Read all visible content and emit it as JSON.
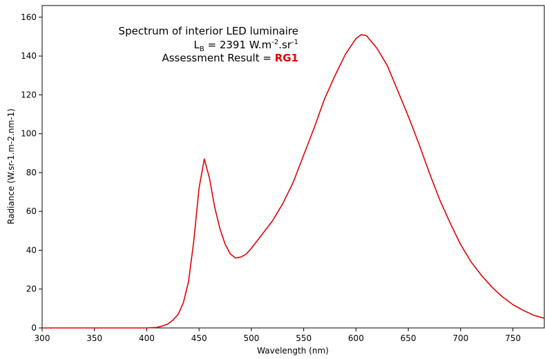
{
  "chart_data": {
    "type": "line",
    "title": "Spectrum of interior LED luminaire",
    "radiance": {
      "symbol": "L",
      "subscript": "B",
      "text": " = 2391 W.m",
      "sup1": "-2",
      "mid": ".sr",
      "sup2": "-1"
    },
    "assessment": {
      "label": "Assessment Result = ",
      "result": "RG1",
      "result_color": "#e00000"
    },
    "x_label": "Wavelength (nm)",
    "y_label": "Radiance (W.sr-1.m-2.nm-1)",
    "x": [
      300,
      350,
      400,
      410,
      415,
      420,
      425,
      430,
      435,
      440,
      445,
      450,
      455,
      460,
      465,
      470,
      475,
      480,
      485,
      490,
      495,
      500,
      510,
      520,
      530,
      540,
      550,
      560,
      570,
      580,
      590,
      600,
      605,
      610,
      620,
      630,
      640,
      650,
      660,
      670,
      680,
      690,
      700,
      710,
      720,
      730,
      740,
      750,
      760,
      770,
      780
    ],
    "series": [
      {
        "color": "#e00000",
        "values": [
          0,
          0,
          0,
          0.3,
          1,
          2,
          4,
          7,
          13,
          24,
          45,
          72,
          87,
          77,
          62,
          51,
          43,
          38,
          36,
          36.5,
          38,
          41,
          48,
          55,
          64,
          75,
          89,
          103,
          118,
          130,
          141,
          149,
          151,
          150.5,
          144,
          135,
          122,
          109,
          95,
          80,
          66,
          54,
          43,
          34,
          27,
          21,
          16,
          12,
          9,
          6.5,
          5
        ]
      }
    ],
    "xlim": [
      300,
      780
    ],
    "xticks": [
      300,
      350,
      400,
      450,
      500,
      550,
      600,
      650,
      700,
      750
    ],
    "ylim": [
      0,
      166
    ],
    "yticks": [
      0,
      20,
      40,
      60,
      80,
      100,
      120,
      140,
      160
    ],
    "grid": false
  }
}
